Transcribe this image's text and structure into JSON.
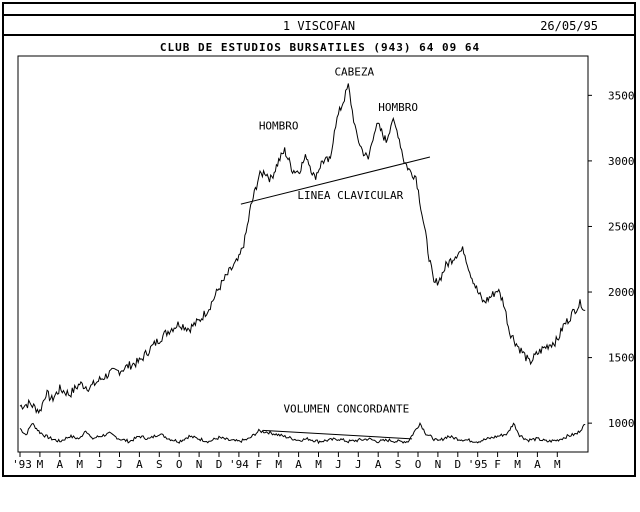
{
  "window": {
    "title": "1 VISCOFAN",
    "date": "26/05/95"
  },
  "header": {
    "title": "CLUB DE ESTUDIOS BURSATILES (943) 64 09 64"
  },
  "chart_data": {
    "type": "line",
    "ylim": [
      780,
      3800
    ],
    "y_ticks": [
      1000,
      1500,
      2000,
      2500,
      3000,
      3500
    ],
    "x_ticks": [
      "'93",
      "M",
      "A",
      "M",
      "J",
      "J",
      "A",
      "S",
      "O",
      "N",
      "D",
      "'94",
      "F",
      "M",
      "A",
      "M",
      "J",
      "J",
      "A",
      "S",
      "O",
      "N",
      "D",
      "'95",
      "F",
      "M",
      "A",
      "M"
    ],
    "series": [
      {
        "kind": "price",
        "points": [
          [
            0,
            1130
          ],
          [
            0.5,
            1150
          ],
          [
            1.0,
            1090
          ],
          [
            1.3,
            1230
          ],
          [
            1.6,
            1180
          ],
          [
            2.0,
            1260
          ],
          [
            2.5,
            1220
          ],
          [
            3.0,
            1300
          ],
          [
            3.5,
            1270
          ],
          [
            4.0,
            1330
          ],
          [
            4.5,
            1380
          ],
          [
            5.0,
            1400
          ],
          [
            5.5,
            1440
          ],
          [
            6.0,
            1470
          ],
          [
            6.5,
            1560
          ],
          [
            7.0,
            1640
          ],
          [
            7.5,
            1710
          ],
          [
            8.0,
            1760
          ],
          [
            8.5,
            1720
          ],
          [
            9.0,
            1780
          ],
          [
            9.5,
            1880
          ],
          [
            10.0,
            2030
          ],
          [
            10.5,
            2150
          ],
          [
            11.0,
            2250
          ],
          [
            11.3,
            2400
          ],
          [
            11.6,
            2650
          ],
          [
            12.0,
            2880
          ],
          [
            12.3,
            2920
          ],
          [
            12.6,
            2860
          ],
          [
            13.0,
            3000
          ],
          [
            13.3,
            3080
          ],
          [
            13.7,
            2930
          ],
          [
            14.0,
            2920
          ],
          [
            14.4,
            3040
          ],
          [
            14.8,
            2870
          ],
          [
            15.2,
            3000
          ],
          [
            15.6,
            3000
          ],
          [
            15.8,
            3250
          ],
          [
            16.0,
            3350
          ],
          [
            16.3,
            3480
          ],
          [
            16.5,
            3570
          ],
          [
            16.7,
            3380
          ],
          [
            16.9,
            3200
          ],
          [
            17.2,
            3080
          ],
          [
            17.5,
            3010
          ],
          [
            17.8,
            3230
          ],
          [
            18.0,
            3270
          ],
          [
            18.4,
            3150
          ],
          [
            18.7,
            3310
          ],
          [
            19.0,
            3210
          ],
          [
            19.3,
            3000
          ],
          [
            19.6,
            2920
          ],
          [
            19.9,
            2880
          ],
          [
            20.2,
            2600
          ],
          [
            20.5,
            2320
          ],
          [
            20.8,
            2060
          ],
          [
            21.1,
            2100
          ],
          [
            21.4,
            2200
          ],
          [
            21.7,
            2250
          ],
          [
            22.0,
            2300
          ],
          [
            22.3,
            2320
          ],
          [
            22.6,
            2160
          ],
          [
            23.0,
            2000
          ],
          [
            23.3,
            1920
          ],
          [
            23.7,
            1970
          ],
          [
            24.0,
            2020
          ],
          [
            24.3,
            1920
          ],
          [
            24.6,
            1700
          ],
          [
            25.0,
            1590
          ],
          [
            25.3,
            1530
          ],
          [
            25.6,
            1460
          ],
          [
            26.0,
            1530
          ],
          [
            26.3,
            1570
          ],
          [
            26.6,
            1600
          ],
          [
            27.0,
            1630
          ],
          [
            27.3,
            1740
          ],
          [
            27.6,
            1800
          ],
          [
            27.9,
            1870
          ],
          [
            28.2,
            1920
          ],
          [
            28.4,
            1860
          ]
        ]
      },
      {
        "kind": "volume",
        "points": [
          [
            0,
            960
          ],
          [
            0.3,
            910
          ],
          [
            0.6,
            1000
          ],
          [
            1.0,
            930
          ],
          [
            1.3,
            900
          ],
          [
            1.6,
            880
          ],
          [
            2.0,
            860
          ],
          [
            2.5,
            900
          ],
          [
            3.0,
            880
          ],
          [
            3.3,
            950
          ],
          [
            3.6,
            880
          ],
          [
            4.0,
            900
          ],
          [
            4.5,
            920
          ],
          [
            5.0,
            880
          ],
          [
            5.5,
            860
          ],
          [
            6.0,
            900
          ],
          [
            6.5,
            880
          ],
          [
            7.0,
            920
          ],
          [
            7.5,
            880
          ],
          [
            8.0,
            860
          ],
          [
            8.5,
            900
          ],
          [
            9.0,
            880
          ],
          [
            9.5,
            860
          ],
          [
            10.0,
            890
          ],
          [
            10.5,
            870
          ],
          [
            11.0,
            860
          ],
          [
            11.5,
            880
          ],
          [
            12.0,
            940
          ],
          [
            12.5,
            930
          ],
          [
            13.0,
            910
          ],
          [
            13.5,
            890
          ],
          [
            14.0,
            870
          ],
          [
            14.5,
            880
          ],
          [
            15.0,
            860
          ],
          [
            15.5,
            870
          ],
          [
            16.0,
            880
          ],
          [
            16.5,
            860
          ],
          [
            17.0,
            870
          ],
          [
            17.5,
            880
          ],
          [
            18.0,
            860
          ],
          [
            18.5,
            870
          ],
          [
            19.0,
            860
          ],
          [
            19.5,
            860
          ],
          [
            19.8,
            930
          ],
          [
            20.1,
            1000
          ],
          [
            20.4,
            920
          ],
          [
            20.8,
            880
          ],
          [
            21.0,
            860
          ],
          [
            21.5,
            900
          ],
          [
            22.0,
            880
          ],
          [
            22.5,
            870
          ],
          [
            23.0,
            860
          ],
          [
            23.5,
            880
          ],
          [
            24.0,
            900
          ],
          [
            24.5,
            920
          ],
          [
            24.8,
            1000
          ],
          [
            25.1,
            910
          ],
          [
            25.5,
            870
          ],
          [
            26.0,
            880
          ],
          [
            26.5,
            860
          ],
          [
            27.0,
            870
          ],
          [
            27.5,
            900
          ],
          [
            28.0,
            920
          ],
          [
            28.4,
            990
          ]
        ]
      }
    ],
    "annotations": [
      "HOMBRO",
      "CABEZA",
      "HOMBRO",
      "LINEA CLAVICULAR",
      "VOLUMEN CONCORDANTE"
    ]
  }
}
